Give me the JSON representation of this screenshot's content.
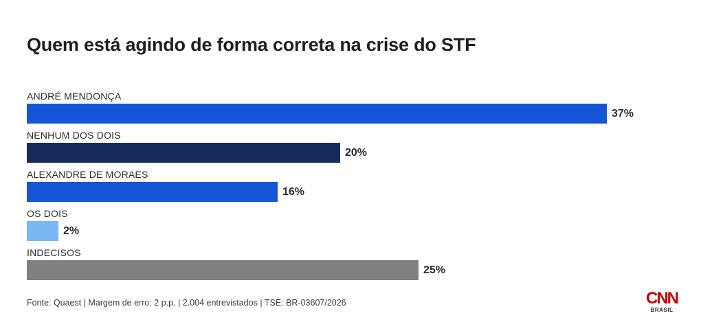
{
  "chart_data": {
    "type": "bar",
    "orientation": "horizontal",
    "title": "Quem está agindo de forma correta na crise do STF",
    "categories": [
      "ANDRÉ MENDONÇA",
      "NENHUM DOS DOIS",
      "ALEXANDRE DE MORAES",
      "OS DOIS",
      "INDECISOS"
    ],
    "values": [
      37,
      20,
      16,
      2,
      25
    ],
    "value_labels": [
      "37%",
      "20%",
      "16%",
      "2%",
      "25%"
    ],
    "bar_colors": [
      "#1656d6",
      "#162a5c",
      "#1656d6",
      "#7ab8f5",
      "#808080"
    ],
    "xlim": [
      0,
      37
    ],
    "grid": false,
    "legend": "none"
  },
  "footer": {
    "source": "Fonte: Quaest | Margem de erro: 2 p.p. | 2.004 entrevistados | TSE: BR-03607/2026"
  },
  "logo": {
    "brand": "CNN",
    "subtitle": "BRASIL",
    "color": "#cc0000"
  }
}
